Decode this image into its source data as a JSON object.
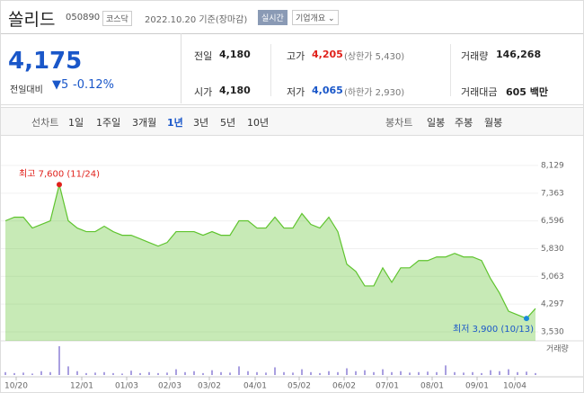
{
  "header": {
    "name": "쏠리드",
    "code": "050890",
    "market": "코스닥",
    "date": "2022.10.20 기준(장마감)",
    "realtime": "실시간",
    "overview": "기업개요"
  },
  "quote": {
    "price": "4,175",
    "change_label": "전일대비",
    "change": "5",
    "change_pct": "-0.12%",
    "stats": [
      {
        "label": "전일",
        "value": "4,180"
      },
      {
        "label": "고가",
        "value": "4,205",
        "extra": "(상한가 5,430)"
      },
      {
        "label": "거래량",
        "value": "146,268"
      },
      {
        "label": "시가",
        "value": "4,180"
      },
      {
        "label": "저가",
        "value": "4,065",
        "extra": "(하한가 2,930)"
      },
      {
        "label": "거래대금",
        "value": "605 백만"
      }
    ]
  },
  "tabs": {
    "line_label": "선차트",
    "periods": [
      "1일",
      "1주일",
      "3개월",
      "1년",
      "3년",
      "5년",
      "10년"
    ],
    "selected": 3,
    "candle_label": "봉차트",
    "candles": [
      "일봉",
      "주봉",
      "월봉"
    ]
  },
  "chart": {
    "type": "area",
    "color": "#5fc42e",
    "ylim": [
      3530,
      8129
    ],
    "yticks": [
      {
        "value": 8129,
        "label": "8,129"
      },
      {
        "value": 7363,
        "label": "7,363"
      },
      {
        "value": 6596,
        "label": "6,596"
      },
      {
        "value": 5830,
        "label": "5,830"
      },
      {
        "value": 5063,
        "label": "5,063"
      },
      {
        "value": 4297,
        "label": "4,297"
      },
      {
        "value": 3530,
        "label": "3,530"
      }
    ],
    "values": [
      6600,
      6700,
      6700,
      6400,
      6500,
      6600,
      7600,
      6600,
      6400,
      6300,
      6300,
      6450,
      6300,
      6200,
      6200,
      6100,
      6000,
      5900,
      6000,
      6300,
      6300,
      6300,
      6200,
      6300,
      6200,
      6200,
      6600,
      6600,
      6400,
      6400,
      6700,
      6400,
      6400,
      6800,
      6500,
      6400,
      6700,
      6300,
      5400,
      5200,
      4800,
      4800,
      5300,
      4900,
      5300,
      5300,
      5500,
      5500,
      5600,
      5600,
      5700,
      5600,
      5600,
      5500,
      5000,
      4600,
      4100,
      4000,
      3900,
      4175
    ],
    "volume": [
      300000,
      200000,
      250000,
      150000,
      400000,
      300000,
      3000000,
      900000,
      400000,
      200000,
      250000,
      300000,
      200000,
      150000,
      450000,
      200000,
      300000,
      200000,
      250000,
      600000,
      300000,
      400000,
      200000,
      500000,
      300000,
      250000,
      900000,
      400000,
      300000,
      250000,
      800000,
      300000,
      250000,
      600000,
      300000,
      200000,
      400000,
      300000,
      700000,
      400000,
      500000,
      300000,
      600000,
      300000,
      400000,
      250000,
      300000,
      350000,
      300000,
      1000000,
      300000,
      250000,
      300000,
      200000,
      500000,
      400000,
      600000,
      300000,
      350000,
      200000
    ],
    "volume_label": "거래량",
    "x_labels": [
      "10/20",
      "12/01",
      "01/03",
      "02/03",
      "03/02",
      "04/01",
      "05/02",
      "06/02",
      "07/01",
      "08/01",
      "09/01",
      "10/04"
    ],
    "high": {
      "label": "최고 7,600 (11/24)",
      "index": 6
    },
    "low": {
      "label": "최저 3,900 (10/13)",
      "index": 58
    }
  }
}
